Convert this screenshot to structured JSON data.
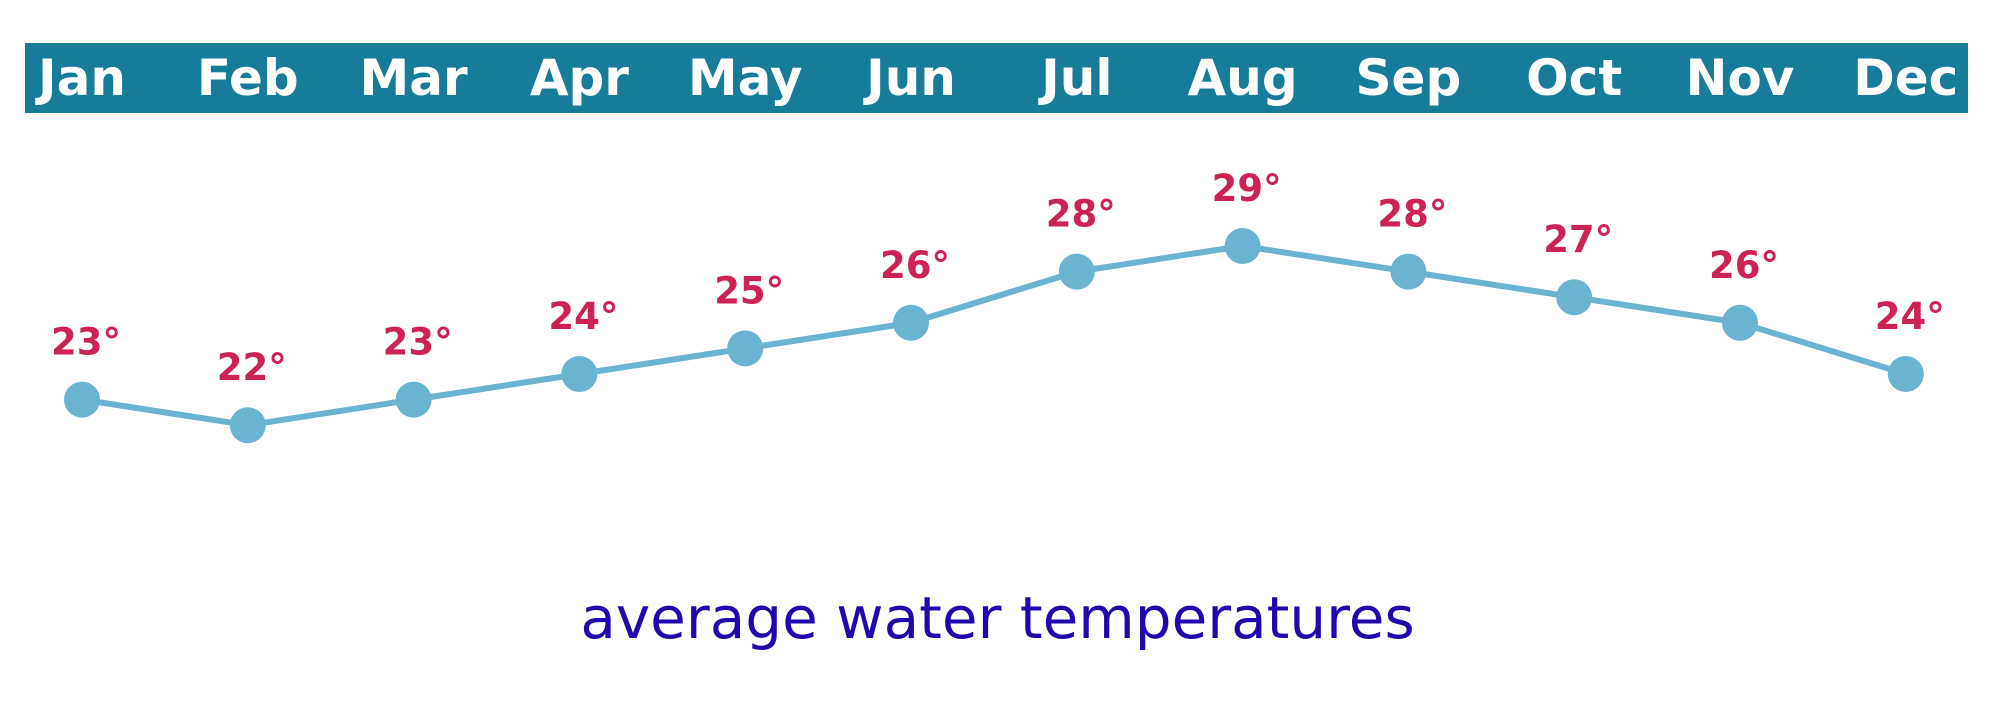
{
  "colors": {
    "header_band": "#167c9a",
    "header_text": "#ffffff",
    "line": "#6ab4d2",
    "marker": "#6ab4d2",
    "value_label": "#cc2354",
    "caption": "#1f09ad",
    "background": "#ffffff"
  },
  "caption": "average water temperatures",
  "chart_data": {
    "type": "line",
    "title": "average water temperatures",
    "categories": [
      "Jan",
      "Feb",
      "Mar",
      "Apr",
      "May",
      "Jun",
      "Jul",
      "Aug",
      "Sep",
      "Oct",
      "Nov",
      "Dec"
    ],
    "series": [
      {
        "values": [
          23,
          22,
          23,
          24,
          25,
          26,
          28,
          29,
          28,
          27,
          26,
          24
        ],
        "labels": [
          "23°",
          "22°",
          "23°",
          "24°",
          "25°",
          "26°",
          "28°",
          "29°",
          "28°",
          "27°",
          "26°",
          "24°"
        ]
      }
    ],
    "category_axis_position": "top",
    "value_unit": "°",
    "grid": false,
    "legend": "none"
  }
}
